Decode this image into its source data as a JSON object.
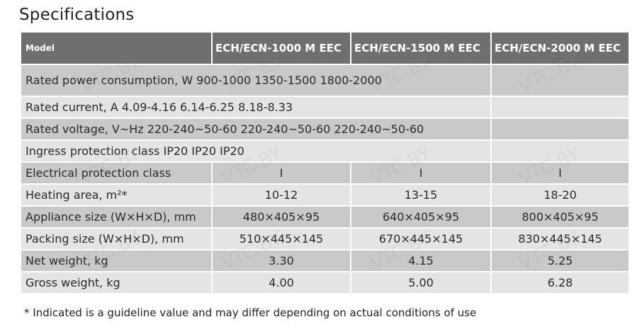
{
  "title": "Specifications",
  "header": [
    "Model",
    "ECH/ECN-1000 M EEC",
    "ECH/ECN-1500 M EEC",
    "ECH/ECN-2000 M EEC"
  ],
  "merged_rows": [
    "Rated power consumption, W 900-1000 1350-1500 1800-2000",
    "Rated current, A 4.09-4.16 6.14-6.25 8.18-8.33",
    "Rated voltage, V~Hz 220-240~50-60 220-240~50-60 220-240~50-60",
    "Ingress protection class IP20 IP20 IP20"
  ],
  "rows": [
    {
      "label": "Electrical protection class",
      "values": [
        "I",
        "I",
        "I"
      ]
    },
    {
      "label": "Heating area, m²*",
      "values": [
        "10-12",
        "13-15",
        "18-20"
      ]
    },
    {
      "label": "Appliance size (W×H×D), mm",
      "values": [
        "480×405×95",
        "640×405×95",
        "800×405×95"
      ]
    },
    {
      "label": "Packing size (W×H×D), mm",
      "values": [
        "510×445×145",
        "670×445×145",
        "830×445×145"
      ]
    },
    {
      "label": "Net weight, kg",
      "values": [
        "3.30",
        "4.15",
        "5.25"
      ]
    },
    {
      "label": "Gross weight, kg",
      "values": [
        "4.00",
        "5.00",
        "6.28"
      ]
    }
  ],
  "footnote": "* Indicated is a guideline value and may differ depending on actual conditions of use",
  "watermark": "VTC.BY"
}
